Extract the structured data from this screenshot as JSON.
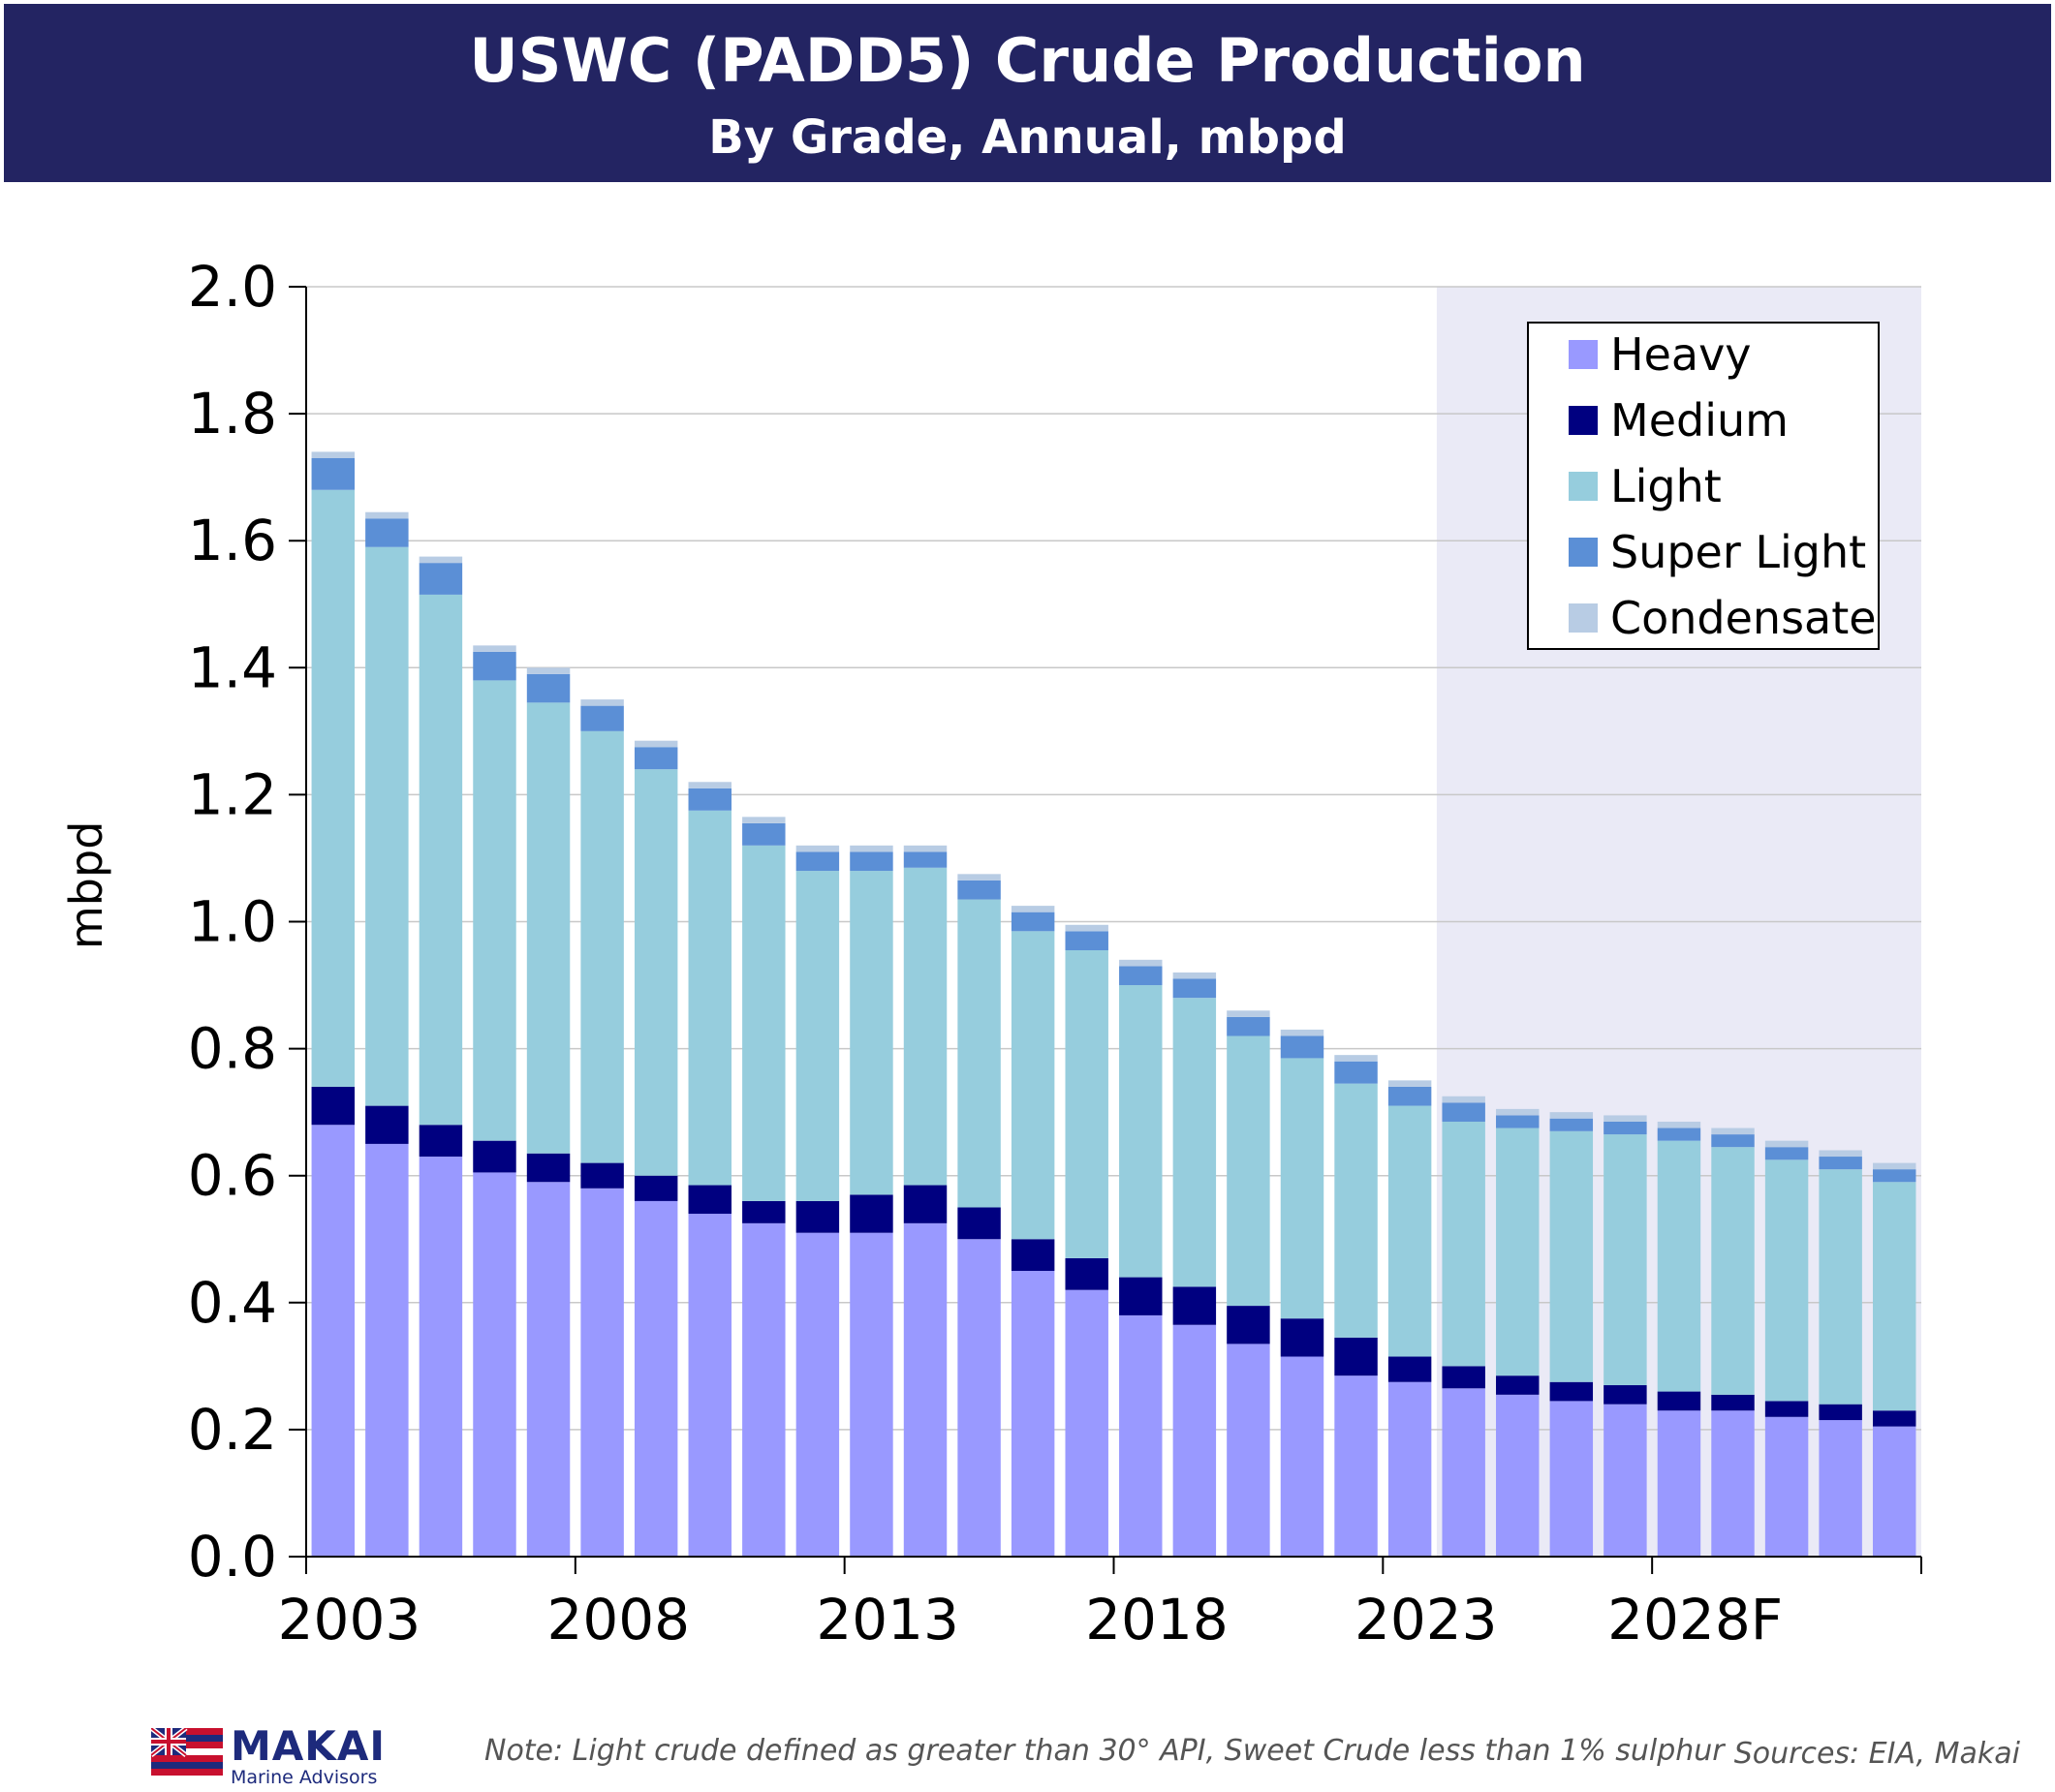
{
  "header": {
    "title": "USWC (PADD5) Crude Production",
    "subtitle": "By Grade, Annual, mbpd"
  },
  "chart_data": {
    "type": "bar",
    "stacked": true,
    "ylabel": "mbpd",
    "ylim": [
      0,
      2.0
    ],
    "yticks": [
      "0.0",
      "0.2",
      "0.4",
      "0.6",
      "0.8",
      "1.0",
      "1.2",
      "1.4",
      "1.6",
      "1.8",
      "2.0"
    ],
    "xtick_labels": [
      "2003",
      "2008",
      "2013",
      "2018",
      "2023",
      "2028F"
    ],
    "categories": [
      "2003",
      "2004",
      "2005",
      "2006",
      "2007",
      "2008",
      "2009",
      "2010",
      "2011",
      "2012",
      "2013",
      "2014",
      "2015",
      "2016",
      "2017",
      "2018",
      "2019",
      "2020",
      "2021",
      "2022",
      "2023",
      "2024",
      "2025",
      "2026",
      "2027",
      "2028",
      "2029",
      "2030",
      "2031",
      "2032"
    ],
    "forecast_shade_from": "2024",
    "grid": true,
    "legend_position": "top-right",
    "series": [
      {
        "name": "Heavy",
        "color": "#9999ff",
        "values": [
          0.68,
          0.65,
          0.63,
          0.605,
          0.59,
          0.58,
          0.56,
          0.54,
          0.525,
          0.51,
          0.51,
          0.525,
          0.5,
          0.45,
          0.42,
          0.38,
          0.365,
          0.335,
          0.315,
          0.285,
          0.275,
          0.265,
          0.255,
          0.245,
          0.24,
          0.23,
          0.23,
          0.22,
          0.215,
          0.205
        ]
      },
      {
        "name": "Medium",
        "color": "#000080",
        "values": [
          0.06,
          0.06,
          0.05,
          0.05,
          0.045,
          0.04,
          0.04,
          0.045,
          0.035,
          0.05,
          0.06,
          0.06,
          0.05,
          0.05,
          0.05,
          0.06,
          0.06,
          0.06,
          0.06,
          0.06,
          0.04,
          0.035,
          0.03,
          0.03,
          0.03,
          0.03,
          0.025,
          0.025,
          0.025,
          0.025
        ]
      },
      {
        "name": "Light",
        "color": "#96cddd",
        "values": [
          0.94,
          0.88,
          0.835,
          0.725,
          0.71,
          0.68,
          0.64,
          0.59,
          0.56,
          0.52,
          0.51,
          0.5,
          0.485,
          0.485,
          0.485,
          0.46,
          0.455,
          0.425,
          0.41,
          0.4,
          0.395,
          0.385,
          0.39,
          0.395,
          0.395,
          0.395,
          0.39,
          0.38,
          0.37,
          0.36
        ]
      },
      {
        "name": "Super Light",
        "color": "#5b8fd6",
        "values": [
          0.05,
          0.045,
          0.05,
          0.045,
          0.045,
          0.04,
          0.035,
          0.035,
          0.035,
          0.03,
          0.03,
          0.025,
          0.03,
          0.03,
          0.03,
          0.03,
          0.03,
          0.03,
          0.035,
          0.035,
          0.03,
          0.03,
          0.02,
          0.02,
          0.02,
          0.02,
          0.02,
          0.02,
          0.02,
          0.02
        ]
      },
      {
        "name": "Condensate",
        "color": "#b8cce4",
        "values": [
          0.01,
          0.01,
          0.01,
          0.01,
          0.01,
          0.01,
          0.01,
          0.01,
          0.01,
          0.01,
          0.01,
          0.01,
          0.01,
          0.01,
          0.01,
          0.01,
          0.01,
          0.01,
          0.01,
          0.01,
          0.01,
          0.01,
          0.01,
          0.01,
          0.01,
          0.01,
          0.01,
          0.01,
          0.01,
          0.01
        ]
      }
    ],
    "shade_color": "#eaeaf6",
    "grid_color": "#c8c8c8",
    "legend_border_color": "#000000"
  },
  "footer": {
    "logo_name": "MAKAI",
    "logo_sub": "Marine Advisors",
    "note": "Note:  Light crude defined as greater than 30° API, Sweet Crude less than 1% sulphur",
    "sources": "Sources: EIA, Makai"
  }
}
